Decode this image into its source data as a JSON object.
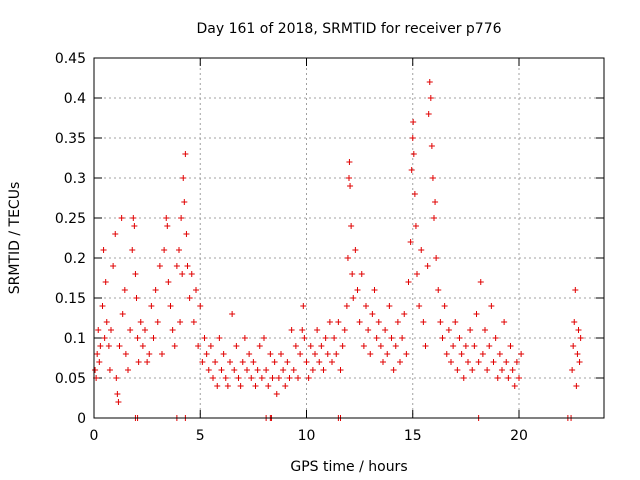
{
  "chart_data": {
    "type": "scatter",
    "title": "Day 161 of 2018, SRMTID for receiver p776",
    "xlabel": "GPS time / hours",
    "ylabel": "SRMTID / TECUs",
    "xlim": [
      0,
      24
    ],
    "ylim": [
      0,
      0.45
    ],
    "x_ticks": [
      "0",
      "5",
      "10",
      "15",
      "20"
    ],
    "x_tick_values": [
      0,
      5,
      10,
      15,
      20
    ],
    "y_ticks": [
      "0",
      "0.05",
      "0.1",
      "0.15",
      "0.2",
      "0.25",
      "0.3",
      "0.35",
      "0.4",
      "0.45"
    ],
    "y_tick_values": [
      0,
      0.05,
      0.1,
      0.15,
      0.2,
      0.25,
      0.3,
      0.35,
      0.4,
      0.45
    ],
    "grid": true,
    "marker": "+",
    "series_color": "#e00000",
    "series": [
      {
        "name": "SRMTID",
        "points": [
          [
            0.05,
            0.06
          ],
          [
            0.1,
            0.05
          ],
          [
            0.15,
            0.08
          ],
          [
            0.2,
            0.11
          ],
          [
            0.25,
            0.07
          ],
          [
            0.3,
            0.09
          ],
          [
            0.4,
            0.14
          ],
          [
            0.45,
            0.21
          ],
          [
            0.5,
            0.1
          ],
          [
            0.55,
            0.17
          ],
          [
            0.6,
            0.12
          ],
          [
            0.7,
            0.09
          ],
          [
            0.75,
            0.06
          ],
          [
            0.8,
            0.11
          ],
          [
            0.9,
            0.19
          ],
          [
            1.0,
            0.23
          ],
          [
            1.05,
            0.05
          ],
          [
            1.1,
            0.03
          ],
          [
            1.15,
            0.02
          ],
          [
            1.2,
            0.09
          ],
          [
            1.3,
            0.25
          ],
          [
            1.35,
            0.13
          ],
          [
            1.45,
            0.16
          ],
          [
            1.5,
            0.08
          ],
          [
            1.6,
            0.06
          ],
          [
            1.7,
            0.11
          ],
          [
            1.8,
            0.21
          ],
          [
            1.85,
            0.25
          ],
          [
            1.9,
            0.24
          ],
          [
            1.95,
            0.18
          ],
          [
            2.0,
            0.15
          ],
          [
            2.05,
            0.1
          ],
          [
            2.1,
            0.07
          ],
          [
            2.2,
            0.12
          ],
          [
            2.3,
            0.09
          ],
          [
            2.4,
            0.11
          ],
          [
            2.5,
            0.07
          ],
          [
            2.6,
            0.08
          ],
          [
            2.7,
            0.14
          ],
          [
            2.8,
            0.1
          ],
          [
            2.9,
            0.16
          ],
          [
            3.0,
            0.12
          ],
          [
            3.1,
            0.19
          ],
          [
            3.2,
            0.08
          ],
          [
            3.3,
            0.21
          ],
          [
            3.4,
            0.25
          ],
          [
            3.45,
            0.24
          ],
          [
            3.5,
            0.17
          ],
          [
            3.6,
            0.14
          ],
          [
            3.7,
            0.11
          ],
          [
            3.8,
            0.09
          ],
          [
            3.9,
            0.19
          ],
          [
            4.0,
            0.21
          ],
          [
            4.05,
            0.12
          ],
          [
            4.1,
            0.25
          ],
          [
            4.15,
            0.18
          ],
          [
            4.2,
            0.3
          ],
          [
            4.25,
            0.27
          ],
          [
            4.3,
            0.33
          ],
          [
            4.35,
            0.23
          ],
          [
            4.4,
            0.19
          ],
          [
            4.5,
            0.15
          ],
          [
            4.6,
            0.18
          ],
          [
            4.7,
            0.12
          ],
          [
            4.8,
            0.16
          ],
          [
            4.9,
            0.09
          ],
          [
            5.0,
            0.14
          ],
          [
            5.1,
            0.07
          ],
          [
            5.2,
            0.1
          ],
          [
            5.3,
            0.08
          ],
          [
            5.4,
            0.06
          ],
          [
            5.5,
            0.09
          ],
          [
            5.6,
            0.05
          ],
          [
            5.7,
            0.07
          ],
          [
            5.8,
            0.04
          ],
          [
            5.9,
            0.1
          ],
          [
            6.0,
            0.06
          ],
          [
            6.1,
            0.08
          ],
          [
            6.2,
            0.05
          ],
          [
            6.3,
            0.04
          ],
          [
            6.4,
            0.07
          ],
          [
            6.5,
            0.13
          ],
          [
            6.6,
            0.06
          ],
          [
            6.7,
            0.09
          ],
          [
            6.8,
            0.05
          ],
          [
            6.9,
            0.04
          ],
          [
            7.0,
            0.07
          ],
          [
            7.1,
            0.1
          ],
          [
            7.2,
            0.06
          ],
          [
            7.3,
            0.08
          ],
          [
            7.4,
            0.05
          ],
          [
            7.5,
            0.07
          ],
          [
            7.6,
            0.04
          ],
          [
            7.7,
            0.06
          ],
          [
            7.8,
            0.09
          ],
          [
            7.9,
            0.05
          ],
          [
            8.0,
            0.1
          ],
          [
            8.1,
            0.06
          ],
          [
            8.2,
            0.04
          ],
          [
            8.3,
            0.08
          ],
          [
            8.4,
            0.05
          ],
          [
            8.5,
            0.07
          ],
          [
            8.6,
            0.03
          ],
          [
            8.7,
            0.05
          ],
          [
            8.8,
            0.08
          ],
          [
            8.9,
            0.06
          ],
          [
            9.0,
            0.04
          ],
          [
            9.1,
            0.07
          ],
          [
            9.2,
            0.05
          ],
          [
            9.3,
            0.11
          ],
          [
            9.4,
            0.06
          ],
          [
            9.5,
            0.09
          ],
          [
            9.6,
            0.05
          ],
          [
            9.7,
            0.08
          ],
          [
            9.8,
            0.11
          ],
          [
            9.85,
            0.14
          ],
          [
            9.9,
            0.1
          ],
          [
            10.0,
            0.07
          ],
          [
            10.1,
            0.05
          ],
          [
            10.2,
            0.09
          ],
          [
            10.3,
            0.06
          ],
          [
            10.4,
            0.08
          ],
          [
            10.5,
            0.11
          ],
          [
            10.6,
            0.07
          ],
          [
            10.7,
            0.09
          ],
          [
            10.8,
            0.06
          ],
          [
            10.9,
            0.1
          ],
          [
            11.0,
            0.08
          ],
          [
            11.1,
            0.12
          ],
          [
            11.2,
            0.07
          ],
          [
            11.3,
            0.1
          ],
          [
            11.4,
            0.08
          ],
          [
            11.5,
            0.12
          ],
          [
            11.6,
            0.06
          ],
          [
            11.7,
            0.09
          ],
          [
            11.8,
            0.11
          ],
          [
            11.9,
            0.14
          ],
          [
            11.95,
            0.2
          ],
          [
            12.0,
            0.3
          ],
          [
            12.02,
            0.32
          ],
          [
            12.05,
            0.29
          ],
          [
            12.1,
            0.24
          ],
          [
            12.15,
            0.18
          ],
          [
            12.2,
            0.15
          ],
          [
            12.3,
            0.21
          ],
          [
            12.4,
            0.16
          ],
          [
            12.5,
            0.12
          ],
          [
            12.6,
            0.18
          ],
          [
            12.7,
            0.09
          ],
          [
            12.8,
            0.14
          ],
          [
            12.9,
            0.11
          ],
          [
            13.0,
            0.08
          ],
          [
            13.1,
            0.13
          ],
          [
            13.2,
            0.16
          ],
          [
            13.3,
            0.1
          ],
          [
            13.4,
            0.12
          ],
          [
            13.5,
            0.09
          ],
          [
            13.6,
            0.07
          ],
          [
            13.7,
            0.11
          ],
          [
            13.8,
            0.08
          ],
          [
            13.9,
            0.14
          ],
          [
            14.0,
            0.1
          ],
          [
            14.1,
            0.06
          ],
          [
            14.2,
            0.09
          ],
          [
            14.3,
            0.12
          ],
          [
            14.4,
            0.07
          ],
          [
            14.5,
            0.1
          ],
          [
            14.6,
            0.13
          ],
          [
            14.7,
            0.08
          ],
          [
            14.8,
            0.17
          ],
          [
            14.9,
            0.22
          ],
          [
            14.95,
            0.31
          ],
          [
            15.0,
            0.35
          ],
          [
            15.02,
            0.37
          ],
          [
            15.05,
            0.33
          ],
          [
            15.1,
            0.28
          ],
          [
            15.15,
            0.24
          ],
          [
            15.2,
            0.18
          ],
          [
            15.3,
            0.14
          ],
          [
            15.4,
            0.21
          ],
          [
            15.5,
            0.12
          ],
          [
            15.6,
            0.09
          ],
          [
            15.7,
            0.19
          ],
          [
            15.75,
            0.38
          ],
          [
            15.8,
            0.42
          ],
          [
            15.85,
            0.4
          ],
          [
            15.9,
            0.34
          ],
          [
            15.95,
            0.3
          ],
          [
            16.0,
            0.25
          ],
          [
            16.05,
            0.27
          ],
          [
            16.1,
            0.2
          ],
          [
            16.2,
            0.16
          ],
          [
            16.3,
            0.12
          ],
          [
            16.4,
            0.1
          ],
          [
            16.5,
            0.14
          ],
          [
            16.6,
            0.08
          ],
          [
            16.7,
            0.11
          ],
          [
            16.8,
            0.07
          ],
          [
            16.9,
            0.09
          ],
          [
            17.0,
            0.12
          ],
          [
            17.1,
            0.06
          ],
          [
            17.2,
            0.1
          ],
          [
            17.3,
            0.08
          ],
          [
            17.4,
            0.05
          ],
          [
            17.5,
            0.09
          ],
          [
            17.6,
            0.07
          ],
          [
            17.7,
            0.11
          ],
          [
            17.8,
            0.06
          ],
          [
            17.9,
            0.09
          ],
          [
            18.0,
            0.13
          ],
          [
            18.1,
            0.07
          ],
          [
            18.2,
            0.17
          ],
          [
            18.3,
            0.08
          ],
          [
            18.4,
            0.11
          ],
          [
            18.5,
            0.06
          ],
          [
            18.6,
            0.09
          ],
          [
            18.7,
            0.14
          ],
          [
            18.8,
            0.07
          ],
          [
            18.9,
            0.1
          ],
          [
            19.0,
            0.05
          ],
          [
            19.1,
            0.08
          ],
          [
            19.2,
            0.06
          ],
          [
            19.3,
            0.12
          ],
          [
            19.4,
            0.07
          ],
          [
            19.5,
            0.05
          ],
          [
            19.6,
            0.09
          ],
          [
            19.7,
            0.06
          ],
          [
            19.8,
            0.04
          ],
          [
            19.9,
            0.07
          ],
          [
            20.0,
            0.05
          ],
          [
            20.1,
            0.08
          ],
          [
            22.5,
            0.06
          ],
          [
            22.55,
            0.09
          ],
          [
            22.6,
            0.12
          ],
          [
            22.65,
            0.16
          ],
          [
            22.7,
            0.04
          ],
          [
            22.75,
            0.08
          ],
          [
            22.8,
            0.11
          ],
          [
            22.85,
            0.07
          ],
          [
            22.9,
            0.1
          ],
          [
            1.95,
            0
          ],
          [
            2.05,
            0
          ],
          [
            3.9,
            0
          ],
          [
            4.3,
            0
          ],
          [
            8.1,
            0
          ],
          [
            8.3,
            0
          ],
          [
            8.35,
            0
          ],
          [
            11.5,
            0
          ],
          [
            11.6,
            0
          ],
          [
            18.1,
            0
          ],
          [
            22.3,
            0
          ],
          [
            22.45,
            0
          ]
        ]
      }
    ]
  }
}
